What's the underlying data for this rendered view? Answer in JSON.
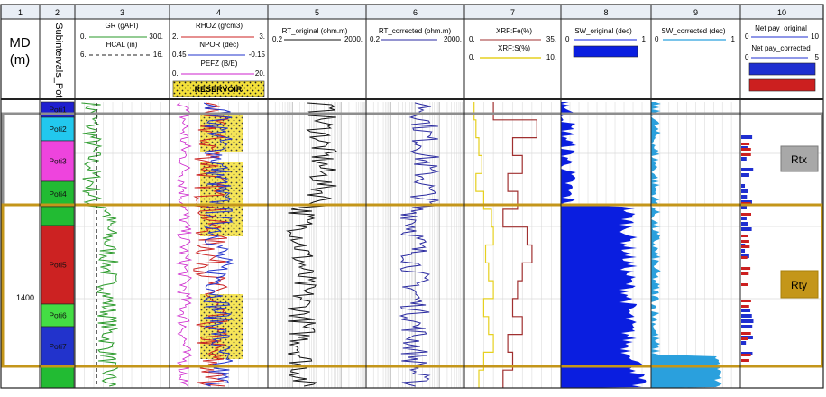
{
  "track_numbers": [
    "1",
    "2",
    "3",
    "4",
    "5",
    "6",
    "7",
    "8",
    "9",
    "10"
  ],
  "depth_track": {
    "label_line1": "MD",
    "label_line2": "(m)",
    "depth_label": "1400"
  },
  "subinterval_track": {
    "title": "Subintervals_Poti",
    "zones": [
      {
        "label": "Poti1",
        "color": "#1f1fd0"
      },
      {
        "label": "Poti2",
        "color": "#22c8ee"
      },
      {
        "label": "Poti3",
        "color": "#ee44dd"
      },
      {
        "label": "Poti4",
        "color": "#22bb33"
      },
      {
        "label": "",
        "color": "#22bb33"
      },
      {
        "label": "Poti5",
        "color": "#cc2222"
      },
      {
        "label": "Poti6",
        "color": "#44dd44"
      },
      {
        "label": "Poti7",
        "color": "#2233cc"
      },
      {
        "label": "",
        "color": "#22bb33"
      },
      {
        "label": "",
        "color": "#dddd22"
      }
    ]
  },
  "track3": {
    "curves": [
      {
        "name": "GR (gAPI)",
        "min": "0.",
        "max": "300.",
        "color": "#2a9a2a",
        "style": "solid"
      },
      {
        "name": "HCAL (in)",
        "min": "6.",
        "max": "16.",
        "color": "#222222",
        "style": "dashed"
      }
    ]
  },
  "track4": {
    "curves": [
      {
        "name": "RHOZ (g/cm3)",
        "min": "2.",
        "max": "3.",
        "color": "#cc2222",
        "style": "solid"
      },
      {
        "name": "NPOR (dec)",
        "min": "0.45",
        "max": "-0.15",
        "color": "#2233cc",
        "style": "solid"
      },
      {
        "name": "PEFZ (B/E)",
        "min": "0.",
        "max": "20.",
        "color": "#cc22cc",
        "style": "solid"
      }
    ],
    "fill_label": "RESERVOIR",
    "fill_color": "#f5e13a"
  },
  "track5": {
    "name": "RT_original (ohm.m)",
    "min": "0.2",
    "max": "2000.",
    "color": "#111111"
  },
  "track6": {
    "name": "RT_corrected (ohm.m)",
    "min": "0.2",
    "max": "2000.",
    "color": "#2a2aa0"
  },
  "track7": {
    "curves": [
      {
        "name": "XRF:Fe(%)",
        "min": "0.",
        "max": "35.",
        "color": "#a03030"
      },
      {
        "name": "XRF:S(%)",
        "min": "0.",
        "max": "10.",
        "color": "#e6d020"
      }
    ]
  },
  "track8": {
    "name": "SW_original (dec)",
    "min": "0",
    "max": "1",
    "color": "#0a1ee0"
  },
  "track9": {
    "name": "SW_corrected (dec)",
    "min": "0",
    "max": "1",
    "color": "#2aa0dd"
  },
  "track10": {
    "curves": [
      {
        "name": "Net pay_original",
        "min": "0",
        "max": "10",
        "color": "#1f2fd0"
      },
      {
        "name": "Net pay_corrected",
        "min": "0",
        "max": "5",
        "color": "#cc1f1f"
      }
    ]
  },
  "zone_markers": [
    {
      "label": "Rtx",
      "bg": "#a8a8a8",
      "border": "#7a7a7a"
    },
    {
      "label": "Rty",
      "bg": "#c4961a",
      "border": "#a8800c"
    }
  ]
}
